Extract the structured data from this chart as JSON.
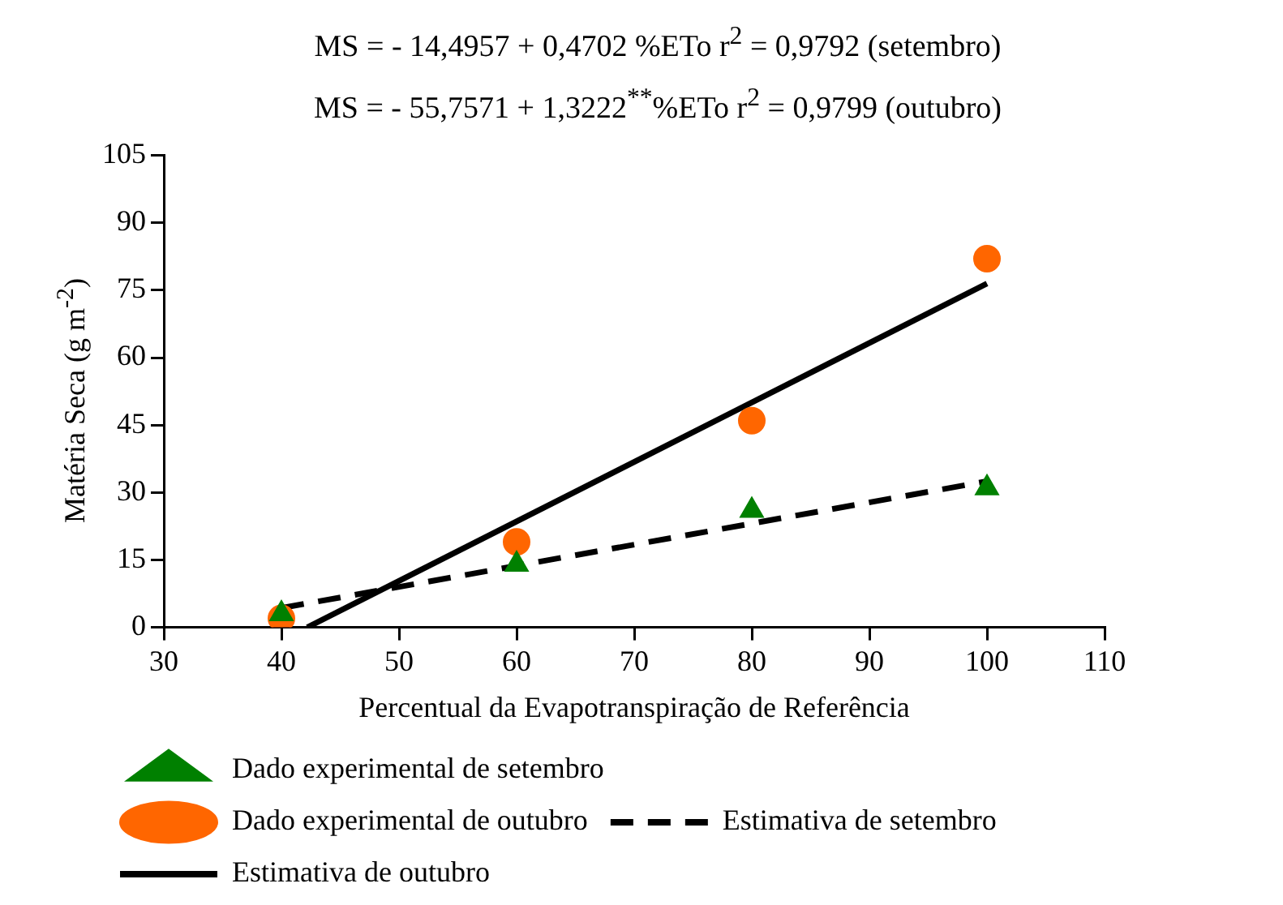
{
  "chart_data": {
    "type": "scatter",
    "title": "MS = - 14,4957 + 0,4702   %ETo   r$^{2}$ = 0,9792  (setembro)",
    "subtitle": "MS = - 55,7571 + 1,3222$^{**}$%ETo   r$^{2}$ = 0,9799  (outubro)",
    "xlabel": "Percentual da Evapotranspiração de Referência",
    "ylabel": "Matéria Seca (g m$^{-2}$)",
    "x": [
      40,
      60,
      80,
      100
    ],
    "series": [
      {
        "name": "Dado experimental de setembro",
        "color": "#008000",
        "values": [
          3,
          14,
          26,
          31
        ],
        "marker": "triangle"
      },
      {
        "name": "Dado experimental de outubro",
        "color": "#ff6600",
        "values": [
          2,
          19,
          46,
          82
        ],
        "marker": "circle"
      },
      {
        "name": "Estimativa de setembro",
        "type": "line",
        "color": "#000000",
        "x": [
          40,
          100
        ],
        "values": [
          4.3,
          32.5
        ],
        "line_style": "dashed",
        "marker": "none"
      },
      {
        "name": "Estimativa de outubro",
        "type": "line",
        "color": "#000000",
        "x": [
          42.2,
          100
        ],
        "values": [
          0,
          76.5
        ],
        "line_style": "solid",
        "marker": "none"
      }
    ],
    "xlim": [
      30,
      110
    ],
    "xticks": [
      30,
      40,
      50,
      60,
      70,
      80,
      90,
      100,
      110
    ],
    "ylim": [
      0,
      105
    ],
    "yticks": [
      0,
      15,
      30,
      45,
      60,
      75,
      90,
      105
    ],
    "grid": false,
    "legend": "bottom"
  }
}
